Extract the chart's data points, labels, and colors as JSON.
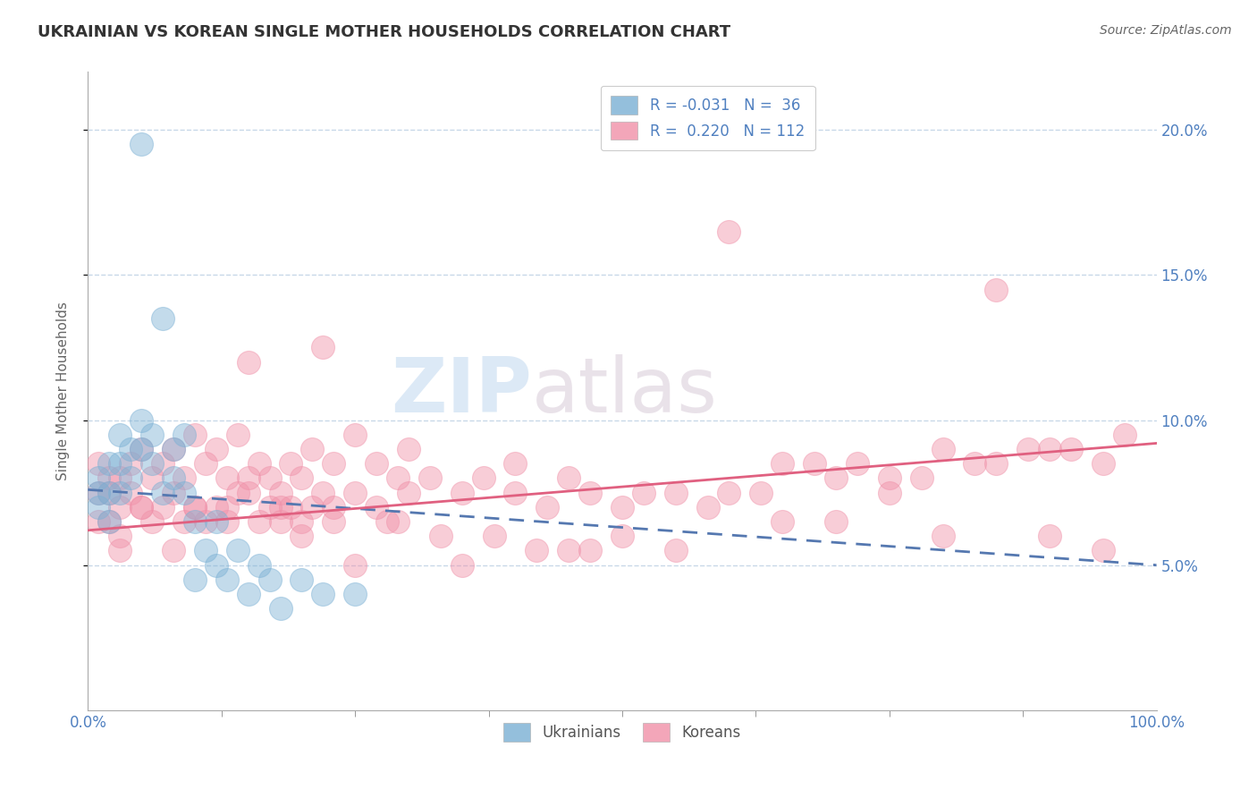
{
  "title": "UKRAINIAN VS KOREAN SINGLE MOTHER HOUSEHOLDS CORRELATION CHART",
  "source": "Source: ZipAtlas.com",
  "ylabel": "Single Mother Households",
  "watermark_zip": "ZIP",
  "watermark_atlas": "atlas",
  "xlim": [
    0,
    100
  ],
  "ylim": [
    0,
    22
  ],
  "yticks": [
    5,
    10,
    15,
    20
  ],
  "ytick_labels": [
    "5.0%",
    "10.0%",
    "15.0%",
    "20.0%"
  ],
  "xtick_labels": [
    "0.0%",
    "100.0%"
  ],
  "grid_color": "#c8d8e8",
  "background_color": "#ffffff",
  "ukrainian_color": "#7ab0d4",
  "korean_color": "#f090a8",
  "ukrainian_line_color": "#5578b0",
  "korean_line_color": "#e06080",
  "tick_color": "#5080c0",
  "title_fontsize": 13,
  "axis_label_fontsize": 11,
  "tick_fontsize": 12,
  "source_fontsize": 10,
  "ukrainian_R": -0.031,
  "korean_R": 0.22,
  "ukrainian_N": 36,
  "korean_N": 112,
  "ukrainian_line_x0": 0,
  "ukrainian_line_y0": 7.6,
  "ukrainian_line_x1": 100,
  "ukrainian_line_y1": 5.0,
  "korean_line_x0": 0,
  "korean_line_y0": 6.2,
  "korean_line_x1": 100,
  "korean_line_y1": 9.2,
  "ukrainian_scatter_x": [
    1,
    1,
    1,
    2,
    2,
    2,
    3,
    3,
    3,
    4,
    4,
    5,
    5,
    6,
    6,
    7,
    7,
    8,
    8,
    9,
    9,
    10,
    10,
    11,
    12,
    12,
    13,
    14,
    15,
    16,
    17,
    18,
    20,
    22,
    25,
    5
  ],
  "ukrainian_scatter_y": [
    7.5,
    8.0,
    7.0,
    8.5,
    7.5,
    6.5,
    9.5,
    8.5,
    7.5,
    9.0,
    8.0,
    10.0,
    9.0,
    9.5,
    8.5,
    13.5,
    7.5,
    9.0,
    8.0,
    9.5,
    7.5,
    4.5,
    6.5,
    5.5,
    6.5,
    5.0,
    4.5,
    5.5,
    4.0,
    5.0,
    4.5,
    3.5,
    4.5,
    4.0,
    4.0,
    19.5
  ],
  "korean_scatter_x": [
    1,
    1,
    1,
    2,
    2,
    2,
    3,
    3,
    3,
    4,
    4,
    5,
    5,
    6,
    6,
    7,
    7,
    8,
    8,
    9,
    9,
    10,
    10,
    11,
    11,
    12,
    12,
    13,
    13,
    14,
    14,
    15,
    15,
    16,
    16,
    17,
    17,
    18,
    18,
    19,
    19,
    20,
    20,
    21,
    21,
    22,
    22,
    23,
    23,
    25,
    25,
    27,
    27,
    29,
    29,
    30,
    32,
    35,
    37,
    40,
    43,
    45,
    47,
    50,
    52,
    55,
    58,
    60,
    63,
    65,
    68,
    70,
    72,
    75,
    78,
    80,
    83,
    85,
    88,
    90,
    92,
    95,
    97,
    60,
    75,
    85,
    50,
    40,
    30,
    20,
    15,
    10,
    5,
    65,
    70,
    80,
    90,
    95,
    45,
    55,
    35,
    25,
    47,
    42,
    38,
    33,
    28,
    23,
    18,
    13,
    8,
    3
  ],
  "korean_scatter_y": [
    7.5,
    8.5,
    6.5,
    7.5,
    8.0,
    6.5,
    8.0,
    7.0,
    6.0,
    7.5,
    8.5,
    9.0,
    7.0,
    8.0,
    6.5,
    8.5,
    7.0,
    9.0,
    7.5,
    8.0,
    6.5,
    9.5,
    7.0,
    8.5,
    6.5,
    9.0,
    7.0,
    8.0,
    6.5,
    9.5,
    7.5,
    12.0,
    7.5,
    8.5,
    6.5,
    8.0,
    7.0,
    7.5,
    6.5,
    8.5,
    7.0,
    8.0,
    6.5,
    9.0,
    7.0,
    12.5,
    7.5,
    8.5,
    7.0,
    9.5,
    7.5,
    8.5,
    7.0,
    8.0,
    6.5,
    9.0,
    8.0,
    7.5,
    8.0,
    7.5,
    7.0,
    8.0,
    7.5,
    7.0,
    7.5,
    7.5,
    7.0,
    7.5,
    7.5,
    8.5,
    8.5,
    8.0,
    8.5,
    8.0,
    8.0,
    9.0,
    8.5,
    8.5,
    9.0,
    9.0,
    9.0,
    8.5,
    9.5,
    16.5,
    7.5,
    14.5,
    6.0,
    8.5,
    7.5,
    6.0,
    8.0,
    7.0,
    7.0,
    6.5,
    6.5,
    6.0,
    6.0,
    5.5,
    5.5,
    5.5,
    5.0,
    5.0,
    5.5,
    5.5,
    6.0,
    6.0,
    6.5,
    6.5,
    7.0,
    7.0,
    5.5,
    5.5
  ]
}
